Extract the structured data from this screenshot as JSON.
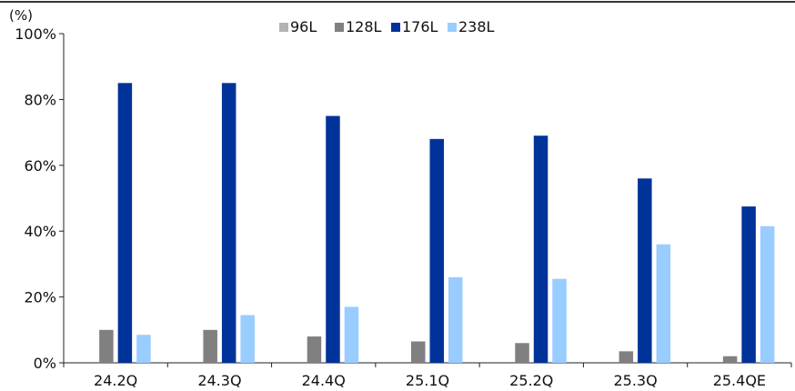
{
  "chart_data": {
    "type": "bar",
    "unit_label": "(%)",
    "categories": [
      "24.2Q",
      "24.3Q",
      "24.4Q",
      "25.1Q",
      "25.2Q",
      "25.3Q",
      "25.4QE"
    ],
    "series": [
      {
        "name": "96L",
        "color": "#b3b3b3",
        "values": [
          0,
          0,
          0,
          0,
          0,
          0,
          0
        ]
      },
      {
        "name": "128L",
        "color": "#808080",
        "values": [
          10,
          10,
          8,
          6.5,
          6,
          3.5,
          2
        ]
      },
      {
        "name": "176L",
        "color": "#003399",
        "values": [
          85,
          85,
          75,
          68,
          69,
          56,
          47.5
        ]
      },
      {
        "name": "238L",
        "color": "#99ccff",
        "values": [
          8.5,
          14.5,
          17,
          26,
          25.5,
          36,
          41.5
        ]
      }
    ],
    "y_ticks": [
      "0%",
      "20%",
      "40%",
      "60%",
      "80%",
      "100%"
    ],
    "ylim": [
      0,
      100
    ],
    "legend_position": "top-center",
    "grid": false
  }
}
